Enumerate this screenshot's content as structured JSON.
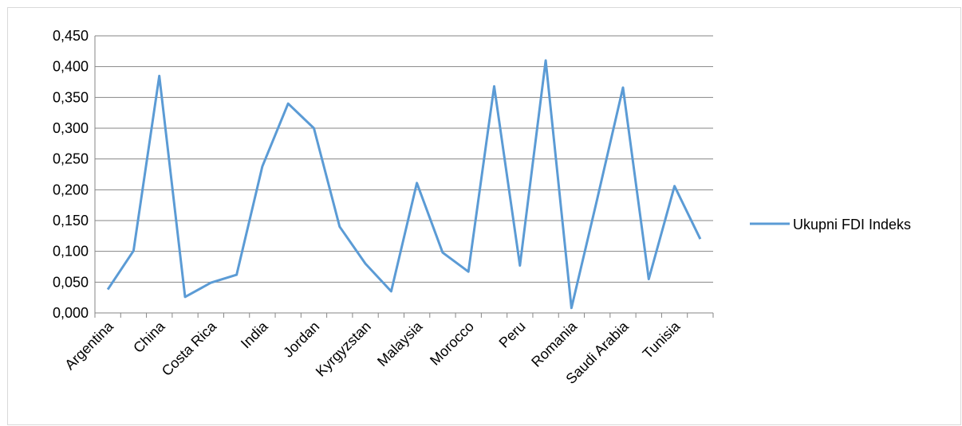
{
  "chart_data": {
    "type": "line",
    "title": "",
    "xlabel": "",
    "ylabel": "",
    "ylim": [
      0,
      0.45
    ],
    "y_ticks": [
      "0,000",
      "0,050",
      "0,100",
      "0,150",
      "0,200",
      "0,250",
      "0,300",
      "0,350",
      "0,400",
      "0,450"
    ],
    "x_tick_labels": [
      "Argentina",
      "China",
      "Costa Rica",
      "India",
      "Jordan",
      "Kyrgyzstan",
      "Malaysia",
      "Morocco",
      "Peru",
      "Romania",
      "Saudi Arabia",
      "Tunisia"
    ],
    "x_count": 24,
    "grid": "horizontal",
    "legend_position": "right",
    "series": [
      {
        "name": "Ukupni FDI Indeks",
        "color": "#5b9bd5",
        "values": [
          0.038,
          0.101,
          0.385,
          0.026,
          0.049,
          0.062,
          0.238,
          0.34,
          0.3,
          0.14,
          0.08,
          0.035,
          0.211,
          0.098,
          0.067,
          0.368,
          0.077,
          0.41,
          0.008,
          0.185,
          0.366,
          0.055,
          0.206,
          0.12
        ]
      }
    ]
  }
}
